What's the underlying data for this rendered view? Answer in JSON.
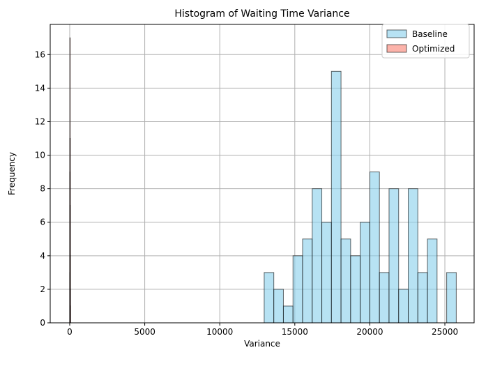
{
  "chart_data": {
    "type": "bar",
    "title": "Histogram of Waiting Time Variance",
    "xlabel": "Variance",
    "ylabel": "Frequency",
    "xlim": [
      -1300,
      26950
    ],
    "ylim": [
      0,
      17.8
    ],
    "x_ticks": [
      0,
      5000,
      10000,
      15000,
      20000,
      25000
    ],
    "y_ticks": [
      0,
      2,
      4,
      6,
      8,
      10,
      12,
      14,
      16
    ],
    "grid": true,
    "legend_position": "top-right",
    "series": [
      {
        "name": "Baseline",
        "color": "#87ceeb",
        "bin_width": 640,
        "bin_starts": [
          12960,
          13600,
          14240,
          14880,
          15520,
          16160,
          16800,
          17440,
          18080,
          18720,
          19360,
          20000,
          20640,
          21280,
          21920,
          22560,
          23200,
          23840,
          24480,
          25120
        ],
        "values": [
          3,
          2,
          1,
          4,
          5,
          8,
          6,
          15,
          5,
          4,
          6,
          9,
          3,
          8,
          2,
          8,
          3,
          5,
          0,
          3
        ]
      },
      {
        "name": "Optimized",
        "color": "#fa8072",
        "bin_width": 4,
        "bin_starts": [
          0,
          4,
          8,
          12,
          16,
          20,
          24,
          28
        ],
        "values": [
          3,
          9,
          17,
          11,
          7,
          4,
          2,
          1
        ]
      }
    ]
  }
}
